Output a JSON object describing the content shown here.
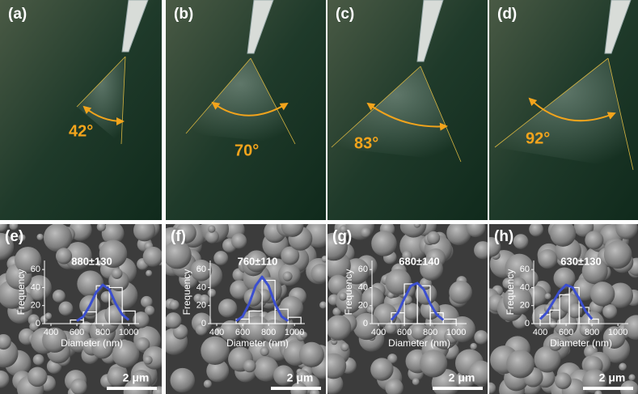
{
  "photos": [
    {
      "label": "(a)",
      "angle": "42°"
    },
    {
      "label": "(b)",
      "angle": "70°"
    },
    {
      "label": "(c)",
      "angle": "83°"
    },
    {
      "label": "(d)",
      "angle": "92°"
    }
  ],
  "chart_data": [
    {
      "type": "histogram",
      "panel_label": "(e)",
      "annotation": "880±130",
      "x_label": "Diameter (nm)",
      "y_label": "Frequency",
      "scale_bar": "2 μm",
      "bins": [
        550,
        650,
        750,
        850,
        950,
        1050
      ],
      "counts": [
        4,
        13,
        42,
        40,
        14
      ],
      "color": "#ffffff",
      "fit": {
        "color": "#3b4fd0",
        "x": [
          600,
          650,
          700,
          750,
          800,
          850,
          900,
          950,
          1000
        ],
        "values": [
          3,
          8,
          20,
          35,
          43,
          38,
          22,
          10,
          4
        ]
      },
      "xlim": [
        350,
        1080
      ],
      "ylim": [
        0,
        70
      ],
      "xticks": [
        400,
        600,
        800,
        1000
      ],
      "yticks": [
        0,
        20,
        40,
        60
      ]
    },
    {
      "type": "histogram",
      "panel_label": "(f)",
      "annotation": "760±110",
      "x_label": "Diameter (nm)",
      "y_label": "Frequency",
      "scale_bar": "2 μm",
      "bins": [
        550,
        650,
        750,
        850,
        950,
        1050
      ],
      "counts": [
        5,
        14,
        48,
        16,
        7
      ],
      "color": "#ffffff",
      "fit": {
        "color": "#3b4fd0",
        "x": [
          550,
          600,
          650,
          700,
          750,
          800,
          850,
          900,
          950
        ],
        "values": [
          3,
          8,
          22,
          42,
          52,
          42,
          22,
          8,
          3
        ]
      },
      "xlim": [
        350,
        1080
      ],
      "ylim": [
        0,
        70
      ],
      "xticks": [
        400,
        600,
        800,
        1000
      ],
      "yticks": [
        0,
        20,
        40,
        60
      ]
    },
    {
      "type": "histogram",
      "panel_label": "(g)",
      "annotation": "680±140",
      "x_label": "Diameter (nm)",
      "y_label": "Frequency",
      "scale_bar": "2 μm",
      "bins": [
        500,
        600,
        700,
        800,
        900,
        1000
      ],
      "counts": [
        12,
        44,
        42,
        12,
        5
      ],
      "color": "#ffffff",
      "fit": {
        "color": "#3b4fd0",
        "x": [
          500,
          550,
          600,
          650,
          700,
          750,
          800,
          850,
          900
        ],
        "values": [
          4,
          12,
          28,
          42,
          45,
          38,
          22,
          10,
          4
        ]
      },
      "xlim": [
        350,
        1080
      ],
      "ylim": [
        0,
        70
      ],
      "xticks": [
        400,
        600,
        800,
        1000
      ],
      "yticks": [
        0,
        20,
        40,
        60
      ]
    },
    {
      "type": "histogram",
      "panel_label": "(h)",
      "annotation": "630±130",
      "x_label": "Diameter (nm)",
      "y_label": "Frequency",
      "scale_bar": "2 μm",
      "bins": [
        400,
        475,
        550,
        625,
        700,
        775,
        850
      ],
      "counts": [
        10,
        15,
        32,
        40,
        18,
        5
      ],
      "color": "#ffffff",
      "fit": {
        "color": "#3b4fd0",
        "x": [
          400,
          450,
          500,
          550,
          600,
          650,
          700,
          750,
          800
        ],
        "values": [
          5,
          12,
          24,
          36,
          43,
          40,
          28,
          14,
          5
        ]
      },
      "xlim": [
        350,
        1080
      ],
      "ylim": [
        0,
        70
      ],
      "xticks": [
        400,
        600,
        800,
        1000
      ],
      "yticks": [
        0,
        20,
        40,
        60
      ]
    }
  ]
}
